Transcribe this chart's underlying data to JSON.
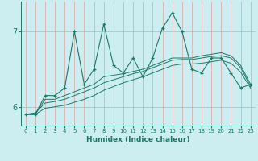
{
  "xlabel": "Humidex (Indice chaleur)",
  "bg_color": "#cceef0",
  "grid_color_v": "#e8a0a0",
  "grid_color_h": "#e8a0a0",
  "line_color": "#1a7a6a",
  "x_values": [
    0,
    1,
    2,
    3,
    4,
    5,
    6,
    7,
    8,
    9,
    10,
    11,
    12,
    13,
    14,
    15,
    16,
    17,
    18,
    19,
    20,
    21,
    22,
    23
  ],
  "main_line": [
    5.9,
    5.9,
    6.15,
    6.15,
    6.25,
    7.0,
    6.3,
    6.5,
    7.1,
    6.55,
    6.45,
    6.65,
    6.4,
    6.65,
    7.05,
    7.25,
    7.0,
    6.5,
    6.45,
    6.65,
    6.65,
    6.45,
    6.25,
    6.3
  ],
  "line2": [
    5.9,
    5.9,
    6.1,
    6.1,
    6.15,
    6.2,
    6.25,
    6.3,
    6.4,
    6.42,
    6.44,
    6.47,
    6.5,
    6.55,
    6.6,
    6.65,
    6.65,
    6.65,
    6.68,
    6.7,
    6.72,
    6.68,
    6.55,
    6.3
  ],
  "line3": [
    5.9,
    5.92,
    6.05,
    6.07,
    6.1,
    6.15,
    6.2,
    6.25,
    6.32,
    6.36,
    6.4,
    6.44,
    6.47,
    6.52,
    6.57,
    6.62,
    6.63,
    6.63,
    6.65,
    6.67,
    6.68,
    6.65,
    6.52,
    6.27
  ],
  "line4": [
    5.9,
    5.9,
    5.98,
    6.0,
    6.02,
    6.06,
    6.1,
    6.15,
    6.22,
    6.27,
    6.32,
    6.36,
    6.4,
    6.45,
    6.5,
    6.55,
    6.57,
    6.57,
    6.58,
    6.6,
    6.62,
    6.58,
    6.46,
    6.25
  ],
  "ylim": [
    5.75,
    7.4
  ],
  "yticks": [
    6,
    7
  ],
  "xlim": [
    -0.5,
    23.5
  ]
}
